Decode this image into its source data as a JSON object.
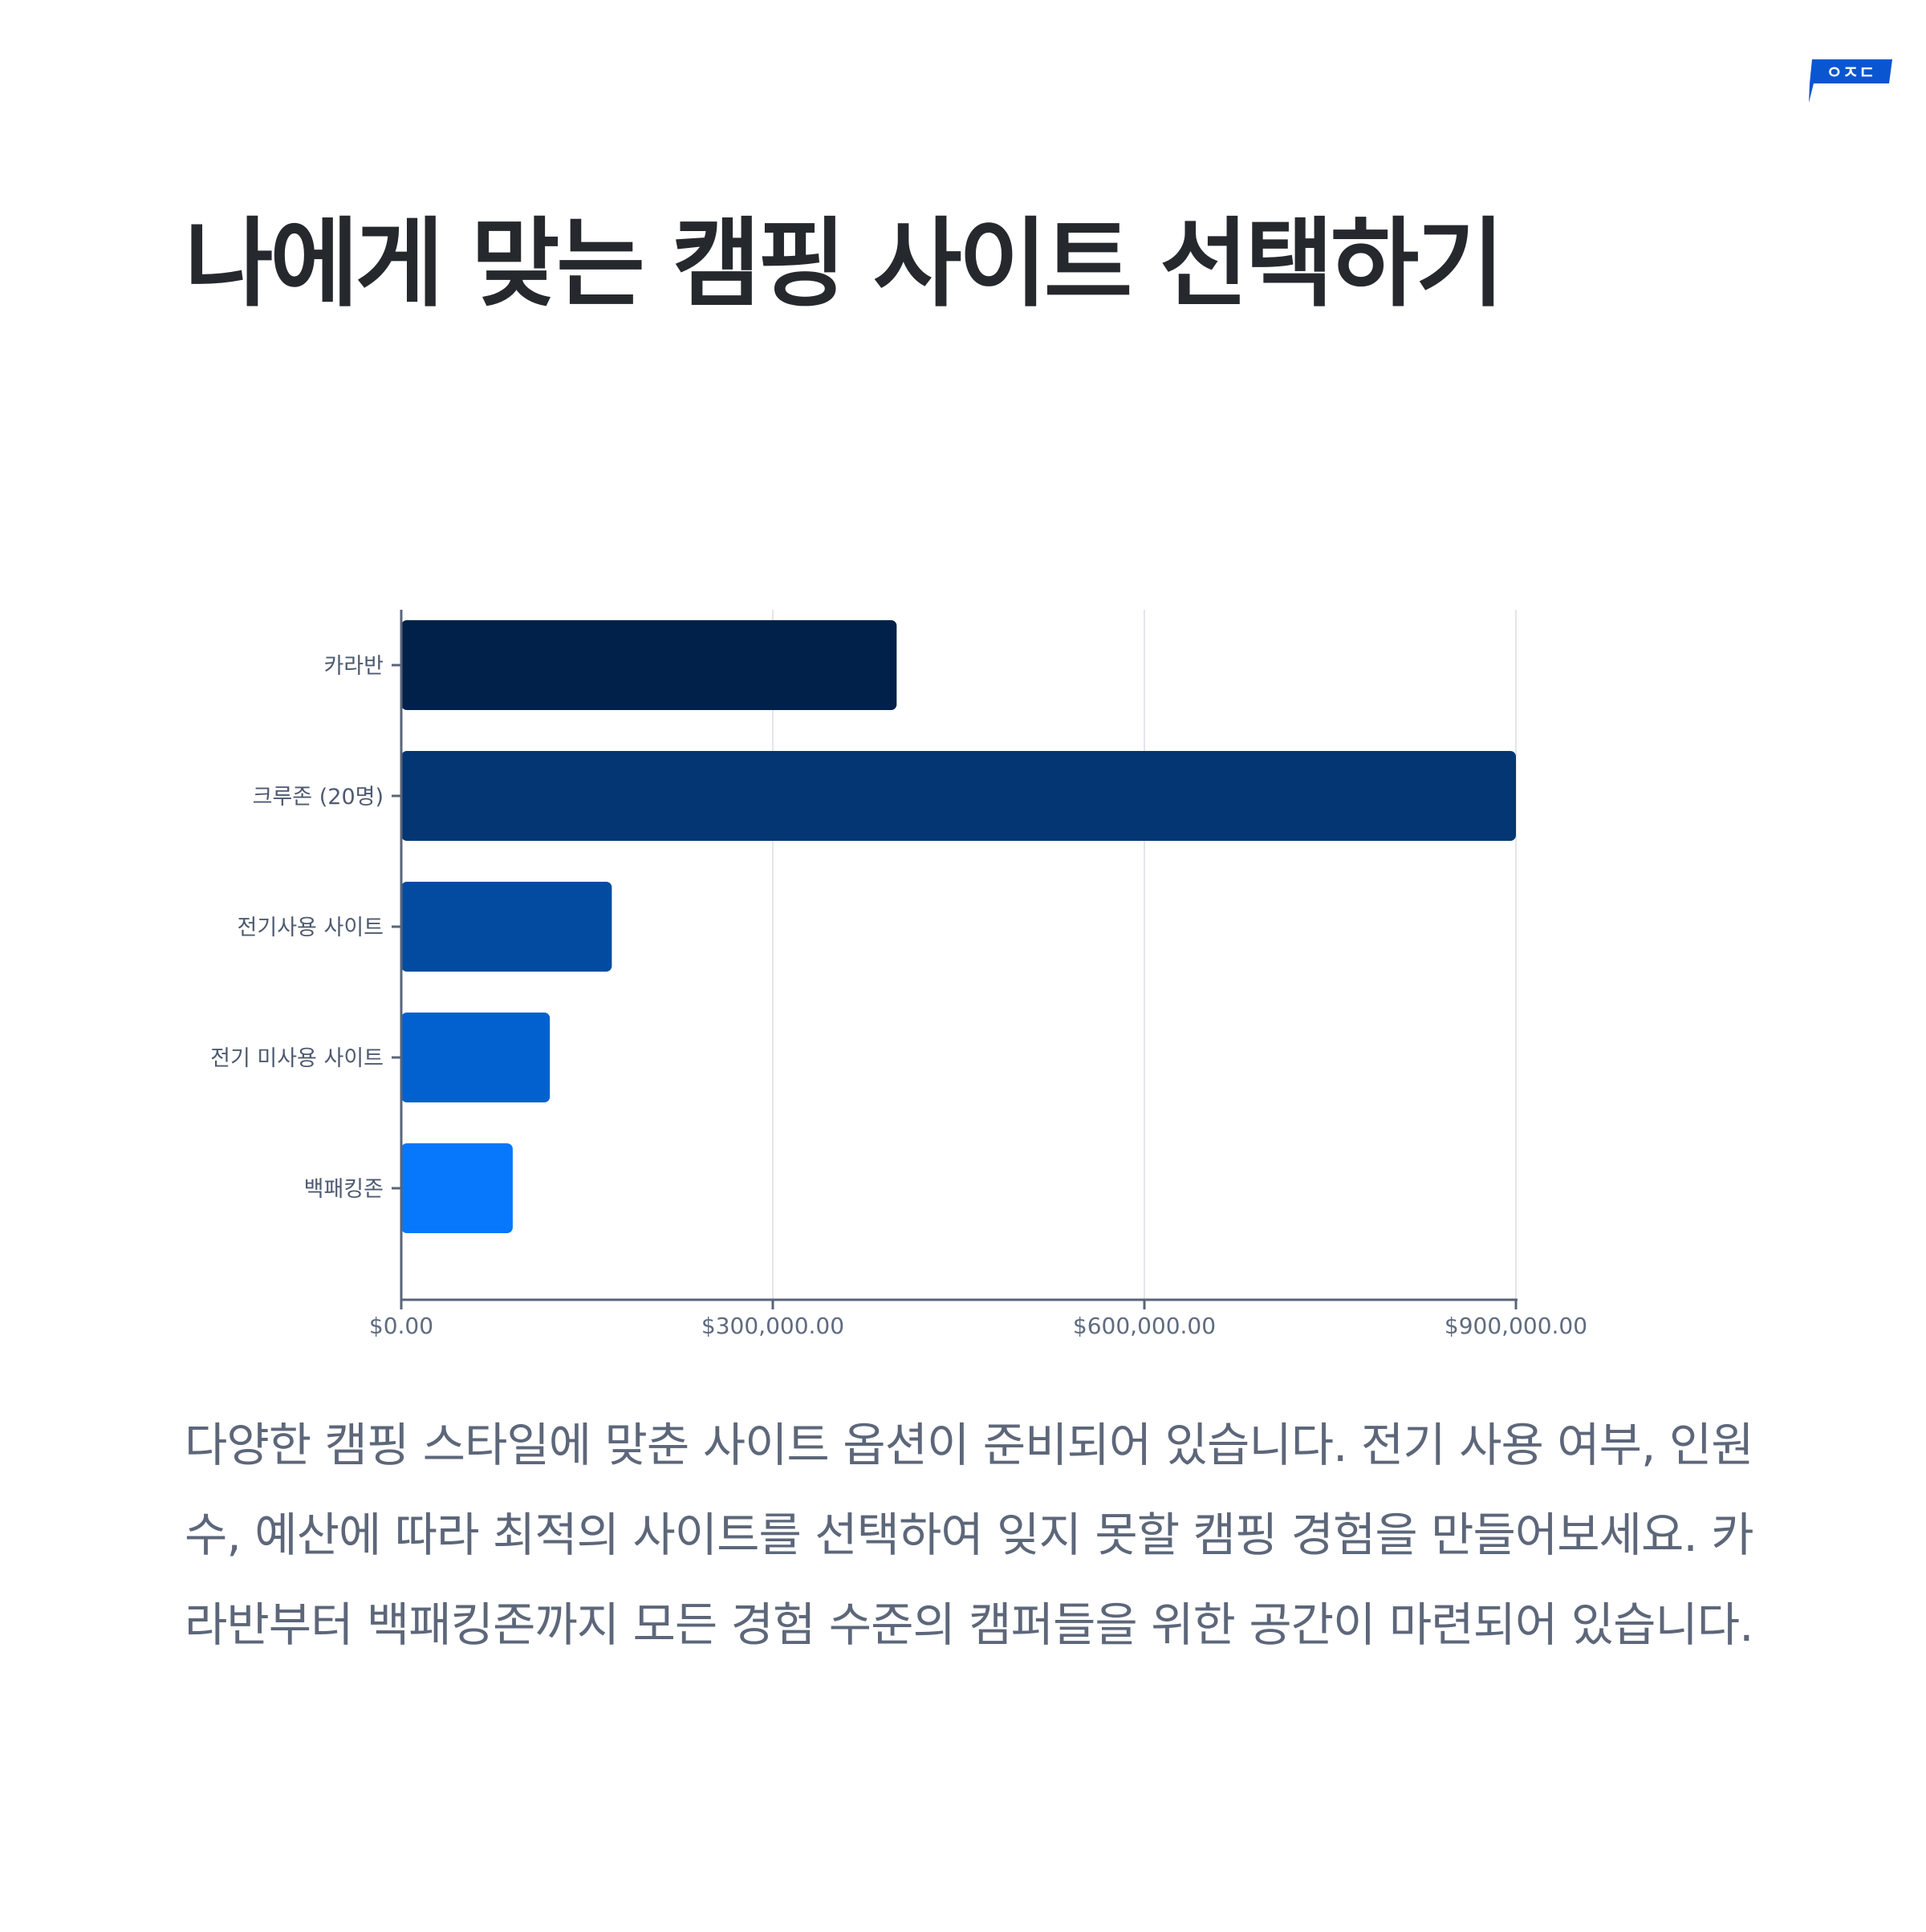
{
  "logo": {
    "text": "ㅇㅈㄷ",
    "color": "#0a56d0"
  },
  "title": "나에게 맞는 캠핑 사이트 선택하기",
  "chart_data": {
    "type": "bar",
    "orientation": "horizontal",
    "categories": [
      "카라반",
      "크루존 (20명)",
      "전기사용 사이트",
      "전기 미사용 사이트",
      "백패킹존"
    ],
    "values": [
      400000,
      900000,
      170000,
      120000,
      90000
    ],
    "bar_colors": [
      "#02214a",
      "#033672",
      "#034ba0",
      "#0361cf",
      "#0777fb"
    ],
    "x_ticks": [
      0,
      300000,
      600000,
      900000
    ],
    "x_tick_labels": [
      "$0.00",
      "$300,000.00",
      "$600,000.00",
      "$900,000.00"
    ],
    "xlim": [
      0,
      900000
    ],
    "grid": "vertical",
    "title": "",
    "xlabel": "",
    "ylabel": ""
  },
  "description": "다양한 캠핑 스타일에 맞춘 사이트 옵션이 준비되어 있습니다. 전기 사용 여부, 인원수, 예산에 따라 최적의 사이트를 선택하여 잊지 못할 캠핑 경험을 만들어보세요. 카라반부터 백패킹존까지 모든 경험 수준의 캠퍼들을 위한 공간이 마련되어 있습니다."
}
